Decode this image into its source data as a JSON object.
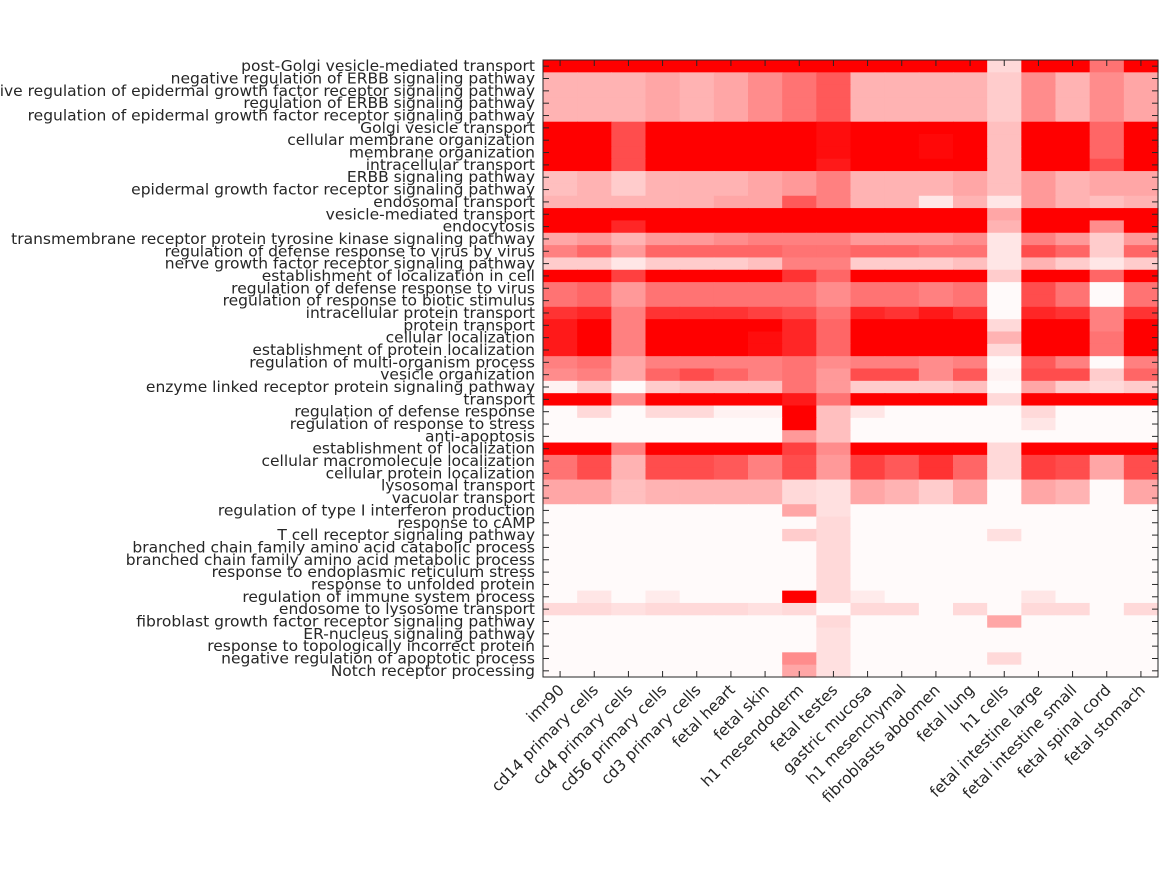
{
  "chart_data": {
    "type": "heatmap",
    "title": "",
    "xlabel": "",
    "ylabel": "",
    "colormap": {
      "low": "#ffffff",
      "high": "#ff0000"
    },
    "value_range": [
      0,
      1
    ],
    "rows": [
      "post-Golgi vesicle-mediated transport",
      "negative regulation of ERBB signaling pathway",
      "negative regulation of epidermal growth factor receptor signaling pathway",
      "regulation of ERBB signaling pathway",
      "regulation of epidermal growth factor receptor signaling pathway",
      "Golgi vesicle transport",
      "cellular membrane organization",
      "membrane organization",
      "intracellular transport",
      "ERBB signaling pathway",
      "epidermal growth factor receptor signaling pathway",
      "endosomal transport",
      "vesicle-mediated transport",
      "endocytosis",
      "transmembrane receptor protein tyrosine kinase signaling pathway",
      "regulation of defense response to virus by virus",
      "nerve growth factor receptor signaling pathway",
      "establishment of localization in cell",
      "regulation of defense response to virus",
      "regulation of response to biotic stimulus",
      "intracellular protein transport",
      "protein transport",
      "cellular localization",
      "establishment of protein localization",
      "regulation of multi-organism process",
      "vesicle organization",
      "enzyme linked receptor protein signaling pathway",
      "transport",
      "regulation of defense response",
      "regulation of response to stress",
      "anti-apoptosis",
      "establishment of localization",
      "cellular macromolecule localization",
      "cellular protein localization",
      "lysosomal transport",
      "vacuolar transport",
      "regulation of type I interferon production",
      "response to cAMP",
      "T cell receptor signaling pathway",
      "branched chain family amino acid catabolic process",
      "branched chain family amino acid metabolic process",
      "response to endoplasmic reticulum stress",
      "response to unfolded protein",
      "regulation of immune system process",
      "endosome to lysosome transport",
      "fibroblast growth factor receptor signaling pathway",
      "ER-nucleus signaling pathway",
      "response to topologically incorrect protein",
      "negative regulation of apoptotic process",
      "Notch receptor processing"
    ],
    "columns": [
      "imr90",
      "cd14 primary cells",
      "cd4 primary cells",
      "cd56 primary cells",
      "cd3 primary cells",
      "fetal heart",
      "fetal skin",
      "h1 mesendoderm",
      "fetal testes",
      "gastric mucosa",
      "h1 mesenchymal",
      "fibroblasts abdomen",
      "fetal lung",
      "h1 cells",
      "fetal intestine large",
      "fetal intestine small",
      "fetal spinal cord",
      "fetal stomach"
    ],
    "values": [
      [
        1,
        1,
        1,
        1,
        1,
        1,
        1,
        1,
        1,
        1,
        1,
        1,
        1,
        0.15,
        1,
        1,
        0.55,
        1
      ],
      [
        0.3,
        0.3,
        0.3,
        0.35,
        0.3,
        0.35,
        0.45,
        0.55,
        0.65,
        0.3,
        0.3,
        0.3,
        0.3,
        0.2,
        0.45,
        0.3,
        0.45,
        0.35
      ],
      [
        0.3,
        0.3,
        0.3,
        0.35,
        0.3,
        0.35,
        0.45,
        0.55,
        0.65,
        0.3,
        0.3,
        0.3,
        0.3,
        0.2,
        0.45,
        0.3,
        0.45,
        0.35
      ],
      [
        0.3,
        0.3,
        0.3,
        0.35,
        0.3,
        0.35,
        0.45,
        0.55,
        0.65,
        0.3,
        0.3,
        0.3,
        0.3,
        0.2,
        0.45,
        0.3,
        0.45,
        0.35
      ],
      [
        0.3,
        0.3,
        0.3,
        0.35,
        0.3,
        0.35,
        0.45,
        0.55,
        0.65,
        0.3,
        0.3,
        0.3,
        0.3,
        0.2,
        0.45,
        0.3,
        0.45,
        0.35
      ],
      [
        1,
        1,
        0.7,
        1,
        1,
        1,
        1,
        1,
        0.95,
        1,
        1,
        1,
        1,
        0.25,
        1,
        1,
        0.6,
        1
      ],
      [
        1,
        1,
        0.7,
        1,
        1,
        1,
        1,
        1,
        0.95,
        1,
        1,
        0.97,
        1,
        0.25,
        1,
        1,
        0.6,
        1
      ],
      [
        1,
        1,
        0.7,
        1,
        1,
        1,
        1,
        1,
        0.95,
        1,
        1,
        0.97,
        1,
        0.25,
        1,
        1,
        0.6,
        1
      ],
      [
        1,
        1,
        0.7,
        1,
        1,
        1,
        1,
        1,
        0.9,
        1,
        1,
        1,
        1,
        0.25,
        1,
        1,
        0.7,
        1
      ],
      [
        0.25,
        0.3,
        0.2,
        0.3,
        0.3,
        0.3,
        0.35,
        0.4,
        0.5,
        0.3,
        0.3,
        0.3,
        0.35,
        0.25,
        0.4,
        0.3,
        0.35,
        0.35
      ],
      [
        0.25,
        0.3,
        0.2,
        0.3,
        0.3,
        0.3,
        0.35,
        0.4,
        0.5,
        0.3,
        0.3,
        0.3,
        0.35,
        0.25,
        0.4,
        0.3,
        0.35,
        0.35
      ],
      [
        0.3,
        0.3,
        0.3,
        0.3,
        0.3,
        0.35,
        0.35,
        0.65,
        0.5,
        0.3,
        0.3,
        0.1,
        0.3,
        0.1,
        0.4,
        0.3,
        0.25,
        0.3
      ],
      [
        1,
        1,
        1,
        1,
        1,
        1,
        1,
        1,
        1,
        1,
        1,
        1,
        1,
        0.35,
        1,
        1,
        1,
        1
      ],
      [
        1,
        1,
        0.85,
        1,
        1,
        1,
        1,
        1,
        1,
        1,
        1,
        1,
        1,
        0.3,
        1,
        1,
        0.45,
        1
      ],
      [
        0.35,
        0.4,
        0.3,
        0.4,
        0.4,
        0.45,
        0.5,
        0.5,
        0.5,
        0.4,
        0.4,
        0.4,
        0.45,
        0.1,
        0.5,
        0.4,
        0.2,
        0.4
      ],
      [
        0.5,
        0.6,
        0.4,
        0.6,
        0.6,
        0.6,
        0.6,
        0.55,
        0.55,
        0.6,
        0.6,
        0.55,
        0.55,
        0.1,
        0.7,
        0.6,
        0.2,
        0.6
      ],
      [
        0.2,
        0.2,
        0.1,
        0.2,
        0.2,
        0.2,
        0.25,
        0.5,
        0.5,
        0.2,
        0.2,
        0.2,
        0.25,
        0.1,
        0.3,
        0.2,
        0.1,
        0.2
      ],
      [
        1,
        1,
        0.75,
        1,
        1,
        1,
        1,
        0.8,
        0.6,
        1,
        1,
        1,
        1,
        0.2,
        1,
        1,
        0.6,
        1
      ],
      [
        0.55,
        0.6,
        0.4,
        0.55,
        0.55,
        0.55,
        0.55,
        0.55,
        0.45,
        0.55,
        0.55,
        0.5,
        0.55,
        0.02,
        0.7,
        0.55,
        0.02,
        0.55
      ],
      [
        0.55,
        0.6,
        0.4,
        0.55,
        0.55,
        0.55,
        0.55,
        0.55,
        0.45,
        0.55,
        0.55,
        0.5,
        0.55,
        0.02,
        0.7,
        0.55,
        0.02,
        0.55
      ],
      [
        0.8,
        0.85,
        0.5,
        0.8,
        0.8,
        0.8,
        0.75,
        0.7,
        0.55,
        0.85,
        0.8,
        0.9,
        0.8,
        0.02,
        0.85,
        0.8,
        0.5,
        0.8
      ],
      [
        0.9,
        1,
        0.5,
        1,
        1,
        1,
        1,
        0.85,
        0.6,
        1,
        1,
        1,
        1,
        0.15,
        1,
        1,
        0.5,
        1
      ],
      [
        0.9,
        1,
        0.5,
        1,
        1,
        1,
        0.95,
        0.85,
        0.6,
        1,
        1,
        1,
        1,
        0.3,
        1,
        1,
        0.55,
        1
      ],
      [
        0.9,
        1,
        0.5,
        1,
        1,
        1,
        0.95,
        0.85,
        0.6,
        1,
        1,
        1,
        1,
        0.15,
        1,
        1,
        0.55,
        1
      ],
      [
        0.5,
        0.55,
        0.35,
        0.5,
        0.5,
        0.5,
        0.5,
        0.55,
        0.45,
        0.5,
        0.5,
        0.45,
        0.5,
        0.02,
        0.65,
        0.5,
        0.02,
        0.5
      ],
      [
        0.45,
        0.5,
        0.35,
        0.6,
        0.7,
        0.6,
        0.5,
        0.55,
        0.4,
        0.7,
        0.7,
        0.45,
        0.65,
        0.05,
        0.7,
        0.7,
        0.2,
        0.6
      ],
      [
        0.05,
        0.2,
        0.02,
        0.2,
        0.25,
        0.25,
        0.25,
        0.55,
        0.4,
        0.2,
        0.2,
        0.2,
        0.25,
        0.02,
        0.35,
        0.2,
        0.15,
        0.2
      ],
      [
        1,
        1,
        0.45,
        1,
        1,
        1,
        1,
        0.9,
        0.55,
        1,
        1,
        1,
        1,
        0.15,
        1,
        1,
        1,
        1
      ],
      [
        0.02,
        0.15,
        0.02,
        0.15,
        0.15,
        0.05,
        0.05,
        1,
        0.25,
        0.1,
        0.02,
        0.02,
        0.02,
        0.02,
        0.15,
        0.02,
        0.02,
        0.02
      ],
      [
        0.02,
        0.02,
        0.02,
        0.02,
        0.02,
        0.02,
        0.02,
        1,
        0.25,
        0.02,
        0.02,
        0.02,
        0.02,
        0.02,
        0.1,
        0.02,
        0.02,
        0.02
      ],
      [
        0.02,
        0.02,
        0.02,
        0.02,
        0.02,
        0.02,
        0.02,
        0.4,
        0.25,
        0.02,
        0.02,
        0.02,
        0.02,
        0.02,
        0.02,
        0.02,
        0.02,
        0.02
      ],
      [
        1,
        1,
        0.5,
        1,
        1,
        1,
        1,
        0.75,
        0.45,
        1,
        1,
        1,
        1,
        0.15,
        1,
        1,
        1,
        1
      ],
      [
        0.55,
        0.7,
        0.3,
        0.7,
        0.7,
        0.65,
        0.5,
        0.7,
        0.4,
        0.75,
        0.65,
        0.8,
        0.6,
        0.15,
        0.75,
        0.7,
        0.35,
        0.7
      ],
      [
        0.55,
        0.7,
        0.3,
        0.7,
        0.7,
        0.65,
        0.5,
        0.7,
        0.4,
        0.75,
        0.65,
        0.8,
        0.6,
        0.15,
        0.75,
        0.7,
        0.35,
        0.7
      ],
      [
        0.35,
        0.35,
        0.25,
        0.3,
        0.3,
        0.3,
        0.3,
        0.15,
        0.12,
        0.35,
        0.3,
        0.2,
        0.35,
        0.02,
        0.35,
        0.3,
        0.02,
        0.35
      ],
      [
        0.35,
        0.35,
        0.25,
        0.3,
        0.3,
        0.3,
        0.3,
        0.15,
        0.12,
        0.35,
        0.3,
        0.2,
        0.35,
        0.02,
        0.35,
        0.3,
        0.02,
        0.35
      ],
      [
        0.02,
        0.02,
        0.02,
        0.02,
        0.02,
        0.02,
        0.02,
        0.35,
        0.12,
        0.02,
        0.02,
        0.02,
        0.02,
        0.02,
        0.02,
        0.02,
        0.02,
        0.02
      ],
      [
        0.02,
        0.02,
        0.02,
        0.02,
        0.02,
        0.02,
        0.02,
        0.02,
        0.15,
        0.02,
        0.02,
        0.02,
        0.02,
        0.02,
        0.02,
        0.02,
        0.02,
        0.02
      ],
      [
        0.02,
        0.02,
        0.02,
        0.02,
        0.02,
        0.02,
        0.02,
        0.2,
        0.15,
        0.02,
        0.02,
        0.02,
        0.02,
        0.12,
        0.02,
        0.02,
        0.02,
        0.02
      ],
      [
        0.02,
        0.02,
        0.02,
        0.02,
        0.02,
        0.02,
        0.02,
        0.02,
        0.15,
        0.02,
        0.02,
        0.02,
        0.02,
        0.02,
        0.02,
        0.02,
        0.02,
        0.02
      ],
      [
        0.02,
        0.02,
        0.02,
        0.02,
        0.02,
        0.02,
        0.02,
        0.02,
        0.15,
        0.02,
        0.02,
        0.02,
        0.02,
        0.02,
        0.02,
        0.02,
        0.02,
        0.02
      ],
      [
        0.02,
        0.02,
        0.02,
        0.02,
        0.02,
        0.02,
        0.02,
        0.02,
        0.15,
        0.02,
        0.02,
        0.02,
        0.02,
        0.02,
        0.02,
        0.02,
        0.02,
        0.02
      ],
      [
        0.02,
        0.02,
        0.02,
        0.02,
        0.02,
        0.02,
        0.02,
        0.02,
        0.15,
        0.02,
        0.02,
        0.02,
        0.02,
        0.02,
        0.02,
        0.02,
        0.02,
        0.02
      ],
      [
        0.02,
        0.1,
        0.02,
        0.08,
        0.02,
        0.02,
        0.02,
        1,
        0.15,
        0.08,
        0.02,
        0.02,
        0.02,
        0.02,
        0.1,
        0.02,
        0.02,
        0.02
      ],
      [
        0.15,
        0.15,
        0.12,
        0.15,
        0.15,
        0.15,
        0.12,
        0.15,
        0.02,
        0.15,
        0.15,
        0.02,
        0.15,
        0.02,
        0.15,
        0.15,
        0.02,
        0.15
      ],
      [
        0.02,
        0.02,
        0.02,
        0.02,
        0.02,
        0.02,
        0.02,
        0.02,
        0.15,
        0.02,
        0.02,
        0.02,
        0.02,
        0.35,
        0.02,
        0.02,
        0.02,
        0.02
      ],
      [
        0.02,
        0.02,
        0.02,
        0.02,
        0.02,
        0.02,
        0.02,
        0.02,
        0.12,
        0.02,
        0.02,
        0.02,
        0.02,
        0.02,
        0.02,
        0.02,
        0.02,
        0.02
      ],
      [
        0.02,
        0.02,
        0.02,
        0.02,
        0.02,
        0.02,
        0.02,
        0.02,
        0.12,
        0.02,
        0.02,
        0.02,
        0.02,
        0.02,
        0.02,
        0.02,
        0.02,
        0.02
      ],
      [
        0.02,
        0.02,
        0.02,
        0.02,
        0.02,
        0.02,
        0.02,
        0.45,
        0.12,
        0.02,
        0.02,
        0.02,
        0.02,
        0.15,
        0.02,
        0.02,
        0.02,
        0.02
      ],
      [
        0.02,
        0.02,
        0.02,
        0.02,
        0.02,
        0.02,
        0.02,
        0.35,
        0.12,
        0.02,
        0.02,
        0.02,
        0.02,
        0.02,
        0.02,
        0.02,
        0.02,
        0.02
      ]
    ]
  }
}
